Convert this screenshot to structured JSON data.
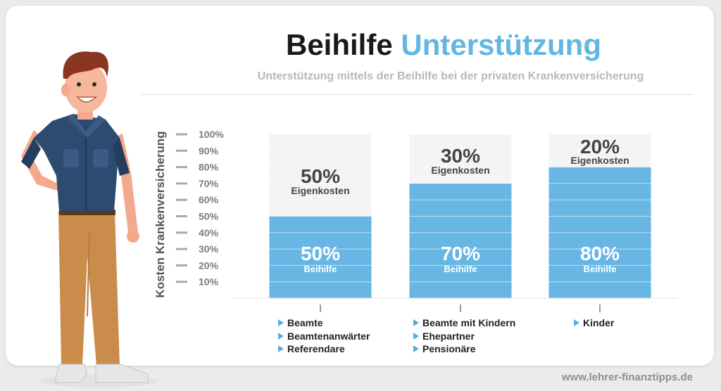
{
  "header": {
    "title_part1": "Beihilfe",
    "title_part2": "Unterstützung",
    "subtitle": "Unterstützung mittels der Beihilfe bei der privaten Krankenversicherung"
  },
  "footer": {
    "website": "www.lehrer-finanztipps.de"
  },
  "colors": {
    "accent": "#63b6e3",
    "bar_blue": "#67b6e3",
    "bar_rest": "#f2f4f6"
  },
  "chart_data": {
    "type": "bar",
    "stacked": true,
    "title": "Beihilfe Unterstützung",
    "ylabel": "Kosten Krankenversicherung",
    "ylim": [
      0,
      100
    ],
    "yticks": [
      "100%",
      "90%",
      "80%",
      "70%",
      "60%",
      "50%",
      "40%",
      "30%",
      "20%",
      "10%"
    ],
    "grid": true,
    "series": [
      {
        "name": "Beihilfe",
        "values": [
          50,
          70,
          80
        ]
      },
      {
        "name": "Eigenkosten",
        "values": [
          50,
          30,
          20
        ]
      }
    ],
    "bar_labels": [
      {
        "beihilfe_pct": "50%",
        "beihilfe_text": "Beihilfe",
        "eigen_pct": "50%",
        "eigen_text": "Eigenkosten"
      },
      {
        "beihilfe_pct": "70%",
        "beihilfe_text": "Beihilfe",
        "eigen_pct": "30%",
        "eigen_text": "Eigenkosten"
      },
      {
        "beihilfe_pct": "80%",
        "beihilfe_text": "Beihilfe",
        "eigen_pct": "20%",
        "eigen_text": "Eigenkosten"
      }
    ],
    "categories": [
      [
        "Beamte",
        "Beamtenanwärter",
        "Referendare"
      ],
      [
        "Beamte mit Kindern",
        "Ehepartner",
        "Pensionäre"
      ],
      [
        "Kinder"
      ]
    ]
  }
}
